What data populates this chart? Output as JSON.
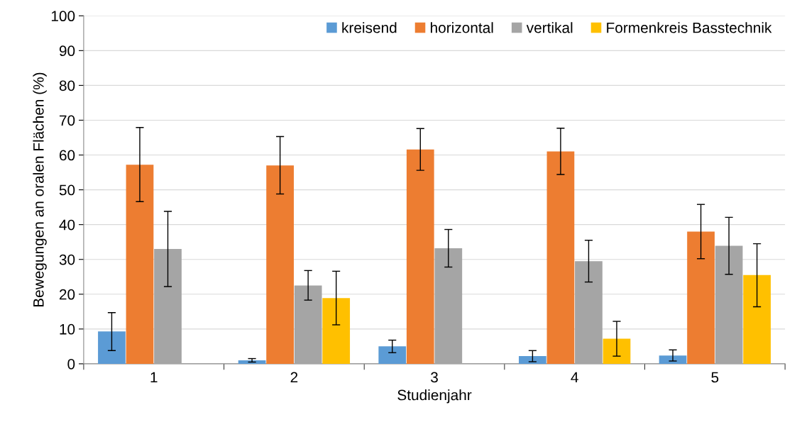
{
  "chart_data": {
    "type": "bar",
    "xlabel": "Studienjahr",
    "ylabel": "Bewegungen an oralen Flächen (%)",
    "categories": [
      "1",
      "2",
      "3",
      "4",
      "5"
    ],
    "series": [
      {
        "name": "kreisend",
        "color": "#5b9bd5",
        "values": [
          9.3,
          1.0,
          5.0,
          2.2,
          2.4
        ],
        "errors": [
          [
            3.8,
            14.7
          ],
          [
            0.5,
            1.5
          ],
          [
            3.2,
            6.8
          ],
          [
            0.6,
            3.8
          ],
          [
            0.8,
            4.0
          ]
        ]
      },
      {
        "name": "horizontal",
        "color": "#ed7d31",
        "values": [
          57.2,
          57.0,
          61.6,
          61.0,
          38.0
        ],
        "errors": [
          [
            46.6,
            67.9
          ],
          [
            48.8,
            65.3
          ],
          [
            55.6,
            67.6
          ],
          [
            54.4,
            67.7
          ],
          [
            30.2,
            45.8
          ]
        ]
      },
      {
        "name": "vertikal",
        "color": "#a5a5a5",
        "values": [
          33.0,
          22.5,
          33.2,
          29.5,
          33.9
        ],
        "errors": [
          [
            22.2,
            43.8
          ],
          [
            18.3,
            26.8
          ],
          [
            27.8,
            38.6
          ],
          [
            23.5,
            35.5
          ],
          [
            25.7,
            42.1
          ]
        ]
      },
      {
        "name": "Formenkreis Basstechnik",
        "color": "#ffc000",
        "values": [
          0,
          18.9,
          0,
          7.2,
          25.5
        ],
        "errors": [
          null,
          [
            11.2,
            26.6
          ],
          null,
          [
            2.2,
            12.2
          ],
          [
            16.4,
            34.5
          ]
        ]
      }
    ],
    "ylim": [
      0,
      100
    ],
    "yticks": [
      0,
      10,
      20,
      30,
      40,
      50,
      60,
      70,
      80,
      90,
      100
    ],
    "grid": "y",
    "legend": "top right"
  }
}
